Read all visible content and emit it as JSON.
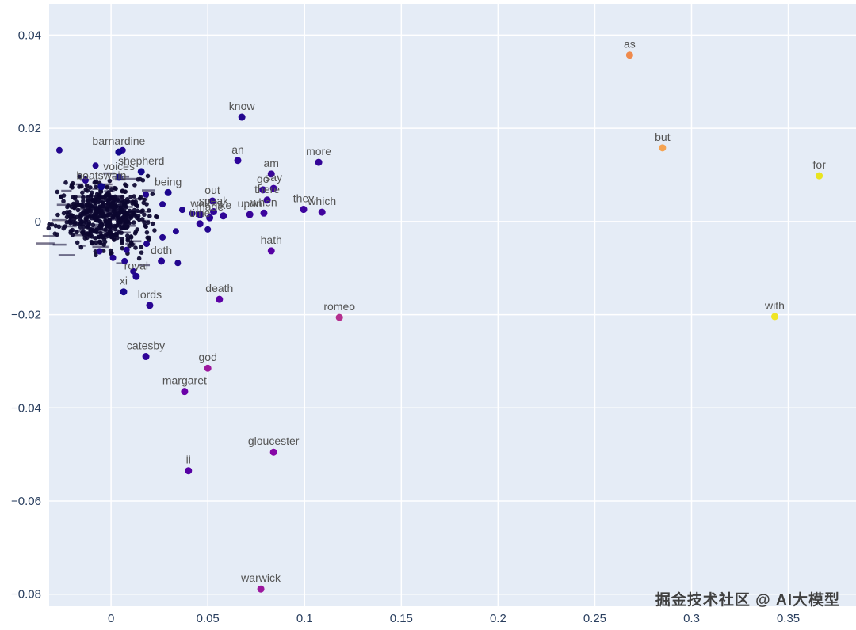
{
  "watermark": "掘金技术社区 @ AI大模型",
  "chart_data": {
    "type": "scatter",
    "title": "",
    "xlabel": "",
    "ylabel": "",
    "xlim": [
      -0.032,
      0.385
    ],
    "ylim": [
      -0.0826,
      0.0467
    ],
    "grid": true,
    "legend": "none",
    "plot_bg": "#e5ecf6",
    "grid_color": "#ffffff",
    "tick_color": "#2a3f5f",
    "point_label_color": "#545454",
    "x_ticks": [
      0,
      0.05,
      0.1,
      0.15,
      0.2,
      0.25,
      0.3,
      0.35
    ],
    "x_tick_labels": [
      "0",
      "0.05",
      "0.1",
      "0.15",
      "0.2",
      "0.25",
      "0.3",
      "0.35"
    ],
    "y_ticks": [
      0.04,
      0.02,
      0,
      -0.02,
      -0.04,
      -0.06,
      -0.08
    ],
    "y_tick_labels": [
      "0.04",
      "0.02",
      "0",
      "−0.02",
      "−0.04",
      "−0.06",
      "−0.08"
    ],
    "labeled_points": [
      {
        "word": "as",
        "x": 0.268,
        "y": 0.0357,
        "color": "#ef8a4c"
      },
      {
        "word": "but",
        "x": 0.285,
        "y": 0.0158,
        "color": "#f5a352"
      },
      {
        "word": "for",
        "x": 0.366,
        "y": 0.0098,
        "color": "#e9e41f"
      },
      {
        "word": "with",
        "x": 0.343,
        "y": -0.0204,
        "color": "#f0e524"
      },
      {
        "word": "know",
        "x": 0.0676,
        "y": 0.0224,
        "color": "#230690"
      },
      {
        "word": "an",
        "x": 0.0655,
        "y": 0.0131,
        "color": "#2d049b"
      },
      {
        "word": "more",
        "x": 0.1073,
        "y": 0.0127,
        "color": "#330597"
      },
      {
        "word": "am",
        "x": 0.0828,
        "y": 0.0102,
        "color": "#370499"
      },
      {
        "word": "go",
        "x": 0.0785,
        "y": 0.0068,
        "color": "#340599"
      },
      {
        "word": "say",
        "x": 0.084,
        "y": 0.0071,
        "color": "#3b049e"
      },
      {
        "word": "there",
        "x": 0.0807,
        "y": 0.0046,
        "color": "#360499"
      },
      {
        "word": "they",
        "x": 0.0995,
        "y": 0.0026,
        "color": "#3d049e"
      },
      {
        "word": "which",
        "x": 0.109,
        "y": 0.002,
        "color": "#41049d"
      },
      {
        "word": "out",
        "x": 0.0524,
        "y": 0.0044,
        "color": "#2d0596"
      },
      {
        "word": "speak",
        "x": 0.053,
        "y": 0.0021,
        "color": "#2e0596"
      },
      {
        "word": "like",
        "x": 0.058,
        "y": 0.0012,
        "color": "#300597"
      },
      {
        "word": "well",
        "x": 0.046,
        "y": 0.0015,
        "color": "#290594"
      },
      {
        "word": "made",
        "x": 0.051,
        "y": 0.0008,
        "color": "#2b0595"
      },
      {
        "word": "upon",
        "x": 0.0717,
        "y": 0.0015,
        "color": "#390499"
      },
      {
        "word": "when",
        "x": 0.079,
        "y": 0.0018,
        "color": "#3c049e"
      },
      {
        "word": "time",
        "x": 0.0459,
        "y": -0.0005,
        "color": "#2c0595"
      },
      {
        "word": "being",
        "x": 0.0295,
        "y": 0.0062,
        "color": "#1c068e"
      },
      {
        "word": "hath",
        "x": 0.0828,
        "y": -0.0063,
        "color": "#5601a4"
      },
      {
        "word": "doth",
        "x": 0.026,
        "y": -0.0085,
        "color": "#260592"
      },
      {
        "word": "royal",
        "x": 0.013,
        "y": -0.0118,
        "color": "#200590"
      },
      {
        "word": "xi",
        "x": 0.0065,
        "y": -0.0151,
        "color": "#19078c"
      },
      {
        "word": "lords",
        "x": 0.02,
        "y": -0.018,
        "color": "#2a0593"
      },
      {
        "word": "death",
        "x": 0.056,
        "y": -0.0167,
        "color": "#5c01a6"
      },
      {
        "word": "romeo",
        "x": 0.118,
        "y": -0.0206,
        "color": "#b5308f"
      },
      {
        "word": "catesby",
        "x": 0.018,
        "y": -0.029,
        "color": "#2f0498"
      },
      {
        "word": "god",
        "x": 0.05,
        "y": -0.0315,
        "color": "#9c179e"
      },
      {
        "word": "margaret",
        "x": 0.038,
        "y": -0.0365,
        "color": "#6a00a8"
      },
      {
        "word": "gloucester",
        "x": 0.084,
        "y": -0.0495,
        "color": "#8606a6"
      },
      {
        "word": "ii",
        "x": 0.04,
        "y": -0.0535,
        "color": "#5601a4"
      },
      {
        "word": "warwick",
        "x": 0.0774,
        "y": -0.0789,
        "color": "#9c179e"
      },
      {
        "word": "barnardine",
        "x": 0.004,
        "y": 0.0149,
        "color": "#10058a"
      },
      {
        "word": "shepherd",
        "x": 0.0156,
        "y": 0.0107,
        "color": "#130789"
      },
      {
        "word": "voices",
        "x": 0.0041,
        "y": 0.0095,
        "color": "#10068a"
      },
      {
        "word": "boatswain",
        "x": -0.005,
        "y": 0.0075,
        "color": "#0f0788"
      }
    ],
    "unlabeled_points": [
      [
        -0.0267,
        0.0153
      ],
      [
        0.006,
        0.0153
      ],
      [
        0.018,
        0.0058
      ],
      [
        0.0266,
        0.0037
      ],
      [
        0.0368,
        0.0025
      ],
      [
        0.042,
        0.0017
      ],
      [
        0.0335,
        -0.0021
      ],
      [
        0.0266,
        -0.0034
      ],
      [
        0.0184,
        -0.0048
      ],
      [
        0.008,
        -0.0061
      ],
      [
        0.001,
        -0.0078
      ],
      [
        -0.006,
        -0.0064
      ],
      [
        0.007,
        -0.0085
      ],
      [
        0.0345,
        -0.0089
      ],
      [
        0.05,
        -0.0017
      ],
      [
        -0.008,
        0.012
      ],
      [
        -0.0132,
        0.0088
      ],
      [
        0.0115,
        -0.0107
      ]
    ],
    "unlabeled_color": "#23068f",
    "cluster": {
      "note": "dense overlapping mass of points and illegible word labels near the origin",
      "center": [
        -0.003,
        0.0012
      ],
      "sigma": [
        0.011,
        0.0034
      ],
      "count": 520,
      "color": "#0c0630"
    }
  }
}
